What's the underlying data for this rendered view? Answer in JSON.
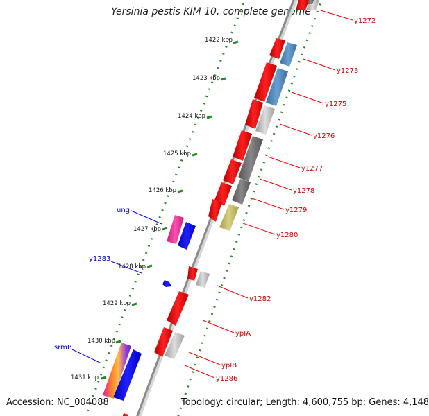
{
  "title": "Yersinia pestis KIM 10, complete genome",
  "footer": {
    "accession": "Accession: NC_004088",
    "summary": "Topology: circular; Length: 4,600,755 bp; Genes: 4,148"
  },
  "colors": {
    "backbone": "#8a8a8a",
    "ruler": "#228b22",
    "forward_gene": "#0000ee",
    "reverse_gene": "#ee0000",
    "label_red": "#cc0000",
    "label_blue": "#0000cc"
  },
  "ruler_labels": [
    "1422 kbp",
    "1423 kbp",
    "1424 kbp",
    "1425 kbp",
    "1426 kbp",
    "1427 kbp",
    "1428 kbp",
    "1429 kbp",
    "1430 kbp",
    "1431 kbp"
  ],
  "outer_gene_labels": [
    "y1272",
    "y1273",
    "y1275",
    "y1276",
    "y1277",
    "y1278",
    "y1279",
    "y1280",
    "y1282",
    "ypIA",
    "ypIB",
    "y1286"
  ],
  "inner_gene_labels": [
    "ung",
    "y1283",
    "srmB"
  ]
}
